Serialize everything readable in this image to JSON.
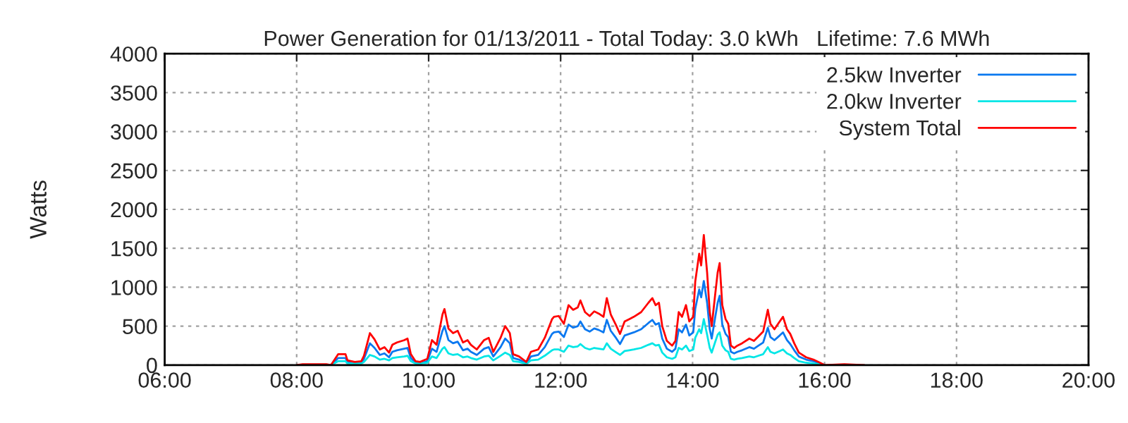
{
  "chart_data": {
    "type": "line",
    "title": "Power Generation for 01/13/2011 - Total Today: 3.0 kWh   Lifetime: 7.6 MWh",
    "ylabel": "Watts",
    "x": [
      8.0,
      8.09,
      8.45,
      8.52,
      8.63,
      8.74,
      8.77,
      8.88,
      8.98,
      9.02,
      9.11,
      9.18,
      9.26,
      9.33,
      9.4,
      9.45,
      9.52,
      9.63,
      9.68,
      9.73,
      9.8,
      9.87,
      9.98,
      10.05,
      10.12,
      10.21,
      10.24,
      10.3,
      10.37,
      10.44,
      10.52,
      10.59,
      10.64,
      10.73,
      10.84,
      10.91,
      10.98,
      11.09,
      11.16,
      11.23,
      11.28,
      11.37,
      11.48,
      11.55,
      11.66,
      11.76,
      11.87,
      11.9,
      11.97,
      12.05,
      12.12,
      12.19,
      12.26,
      12.3,
      12.37,
      12.44,
      12.51,
      12.58,
      12.65,
      12.7,
      12.76,
      12.83,
      12.9,
      12.97,
      13.04,
      13.11,
      13.22,
      13.33,
      13.39,
      13.44,
      13.49,
      13.54,
      13.61,
      13.69,
      13.74,
      13.79,
      13.84,
      13.9,
      13.95,
      14.01,
      14.04,
      14.1,
      14.13,
      14.17,
      14.22,
      14.26,
      14.29,
      14.34,
      14.38,
      14.41,
      14.45,
      14.5,
      14.54,
      14.58,
      14.63,
      14.68,
      14.75,
      14.86,
      14.93,
      15.0,
      15.07,
      15.14,
      15.18,
      15.24,
      15.32,
      15.37,
      15.43,
      15.48,
      15.54,
      15.61,
      15.72,
      15.83,
      15.93,
      16.0,
      16.3,
      16.6
    ],
    "series": [
      {
        "name": "2.5kw Inverter",
        "color": "#0a78f0",
        "values": [
          null,
          null,
          0,
          0,
          90,
          90,
          40,
          20,
          30,
          80,
          280,
          220,
          130,
          150,
          100,
          170,
          190,
          210,
          220,
          90,
          30,
          20,
          50,
          210,
          170,
          440,
          500,
          320,
          280,
          300,
          190,
          210,
          170,
          130,
          210,
          230,
          110,
          230,
          340,
          280,
          90,
          70,
          20,
          110,
          130,
          230,
          400,
          420,
          430,
          360,
          520,
          480,
          500,
          560,
          460,
          430,
          470,
          450,
          420,
          580,
          440,
          360,
          270,
          380,
          400,
          420,
          460,
          540,
          580,
          520,
          540,
          340,
          210,
          170,
          210,
          460,
          420,
          520,
          380,
          420,
          720,
          970,
          870,
          1080,
          800,
          460,
          340,
          600,
          800,
          890,
          520,
          400,
          360,
          170,
          150,
          170,
          190,
          230,
          210,
          250,
          290,
          480,
          360,
          320,
          380,
          420,
          320,
          270,
          190,
          110,
          70,
          50,
          20,
          0,
          null,
          null
        ]
      },
      {
        "name": "2.0kw Inverter",
        "color": "#00e6e6",
        "values": [
          null,
          null,
          0,
          0,
          50,
          50,
          20,
          20,
          20,
          40,
          130,
          110,
          70,
          80,
          60,
          90,
          100,
          110,
          120,
          50,
          20,
          20,
          30,
          110,
          90,
          210,
          230,
          150,
          130,
          140,
          100,
          110,
          90,
          70,
          110,
          120,
          60,
          120,
          160,
          130,
          50,
          40,
          15,
          60,
          70,
          120,
          190,
          200,
          200,
          170,
          250,
          230,
          240,
          270,
          220,
          200,
          220,
          210,
          200,
          280,
          210,
          170,
          130,
          180,
          190,
          200,
          220,
          260,
          280,
          250,
          260,
          160,
          100,
          80,
          100,
          220,
          200,
          250,
          180,
          200,
          350,
          460,
          410,
          590,
          390,
          220,
          160,
          290,
          390,
          420,
          250,
          190,
          170,
          80,
          70,
          80,
          90,
          110,
          100,
          120,
          140,
          230,
          170,
          150,
          180,
          200,
          150,
          130,
          90,
          50,
          30,
          20,
          10,
          0,
          null,
          null
        ]
      },
      {
        "name": "System Total",
        "color": "#ff0000",
        "values": [
          0,
          10,
          10,
          0,
          140,
          140,
          60,
          40,
          50,
          120,
          410,
          330,
          200,
          230,
          160,
          260,
          290,
          320,
          340,
          140,
          50,
          40,
          80,
          320,
          260,
          650,
          720,
          470,
          410,
          440,
          290,
          320,
          260,
          200,
          320,
          350,
          170,
          350,
          500,
          410,
          140,
          110,
          40,
          170,
          200,
          350,
          590,
          620,
          630,
          530,
          770,
          710,
          740,
          830,
          680,
          630,
          690,
          660,
          620,
          860,
          650,
          530,
          400,
          560,
          590,
          620,
          680,
          800,
          860,
          770,
          800,
          500,
          310,
          250,
          310,
          680,
          620,
          770,
          560,
          620,
          1070,
          1430,
          1280,
          1670,
          1190,
          680,
          500,
          890,
          1190,
          1310,
          770,
          590,
          530,
          250,
          220,
          250,
          280,
          340,
          310,
          370,
          430,
          710,
          530,
          460,
          560,
          620,
          460,
          400,
          280,
          160,
          100,
          70,
          30,
          0,
          10,
          0
        ]
      }
    ],
    "xlim": [
      6,
      20
    ],
    "xticks": [
      {
        "value": 6,
        "label": "06:00"
      },
      {
        "value": 8,
        "label": "08:00"
      },
      {
        "value": 10,
        "label": "10:00"
      },
      {
        "value": 12,
        "label": "12:00"
      },
      {
        "value": 14,
        "label": "14:00"
      },
      {
        "value": 16,
        "label": "16:00"
      },
      {
        "value": 18,
        "label": "18:00"
      },
      {
        "value": 20,
        "label": "20:00"
      }
    ],
    "ylim": [
      0,
      4000
    ],
    "yticks": [
      0,
      500,
      1000,
      1500,
      2000,
      2500,
      3000,
      3500,
      4000
    ],
    "grid": true,
    "legend": "top right",
    "marker": "none",
    "line_style": "solid"
  }
}
